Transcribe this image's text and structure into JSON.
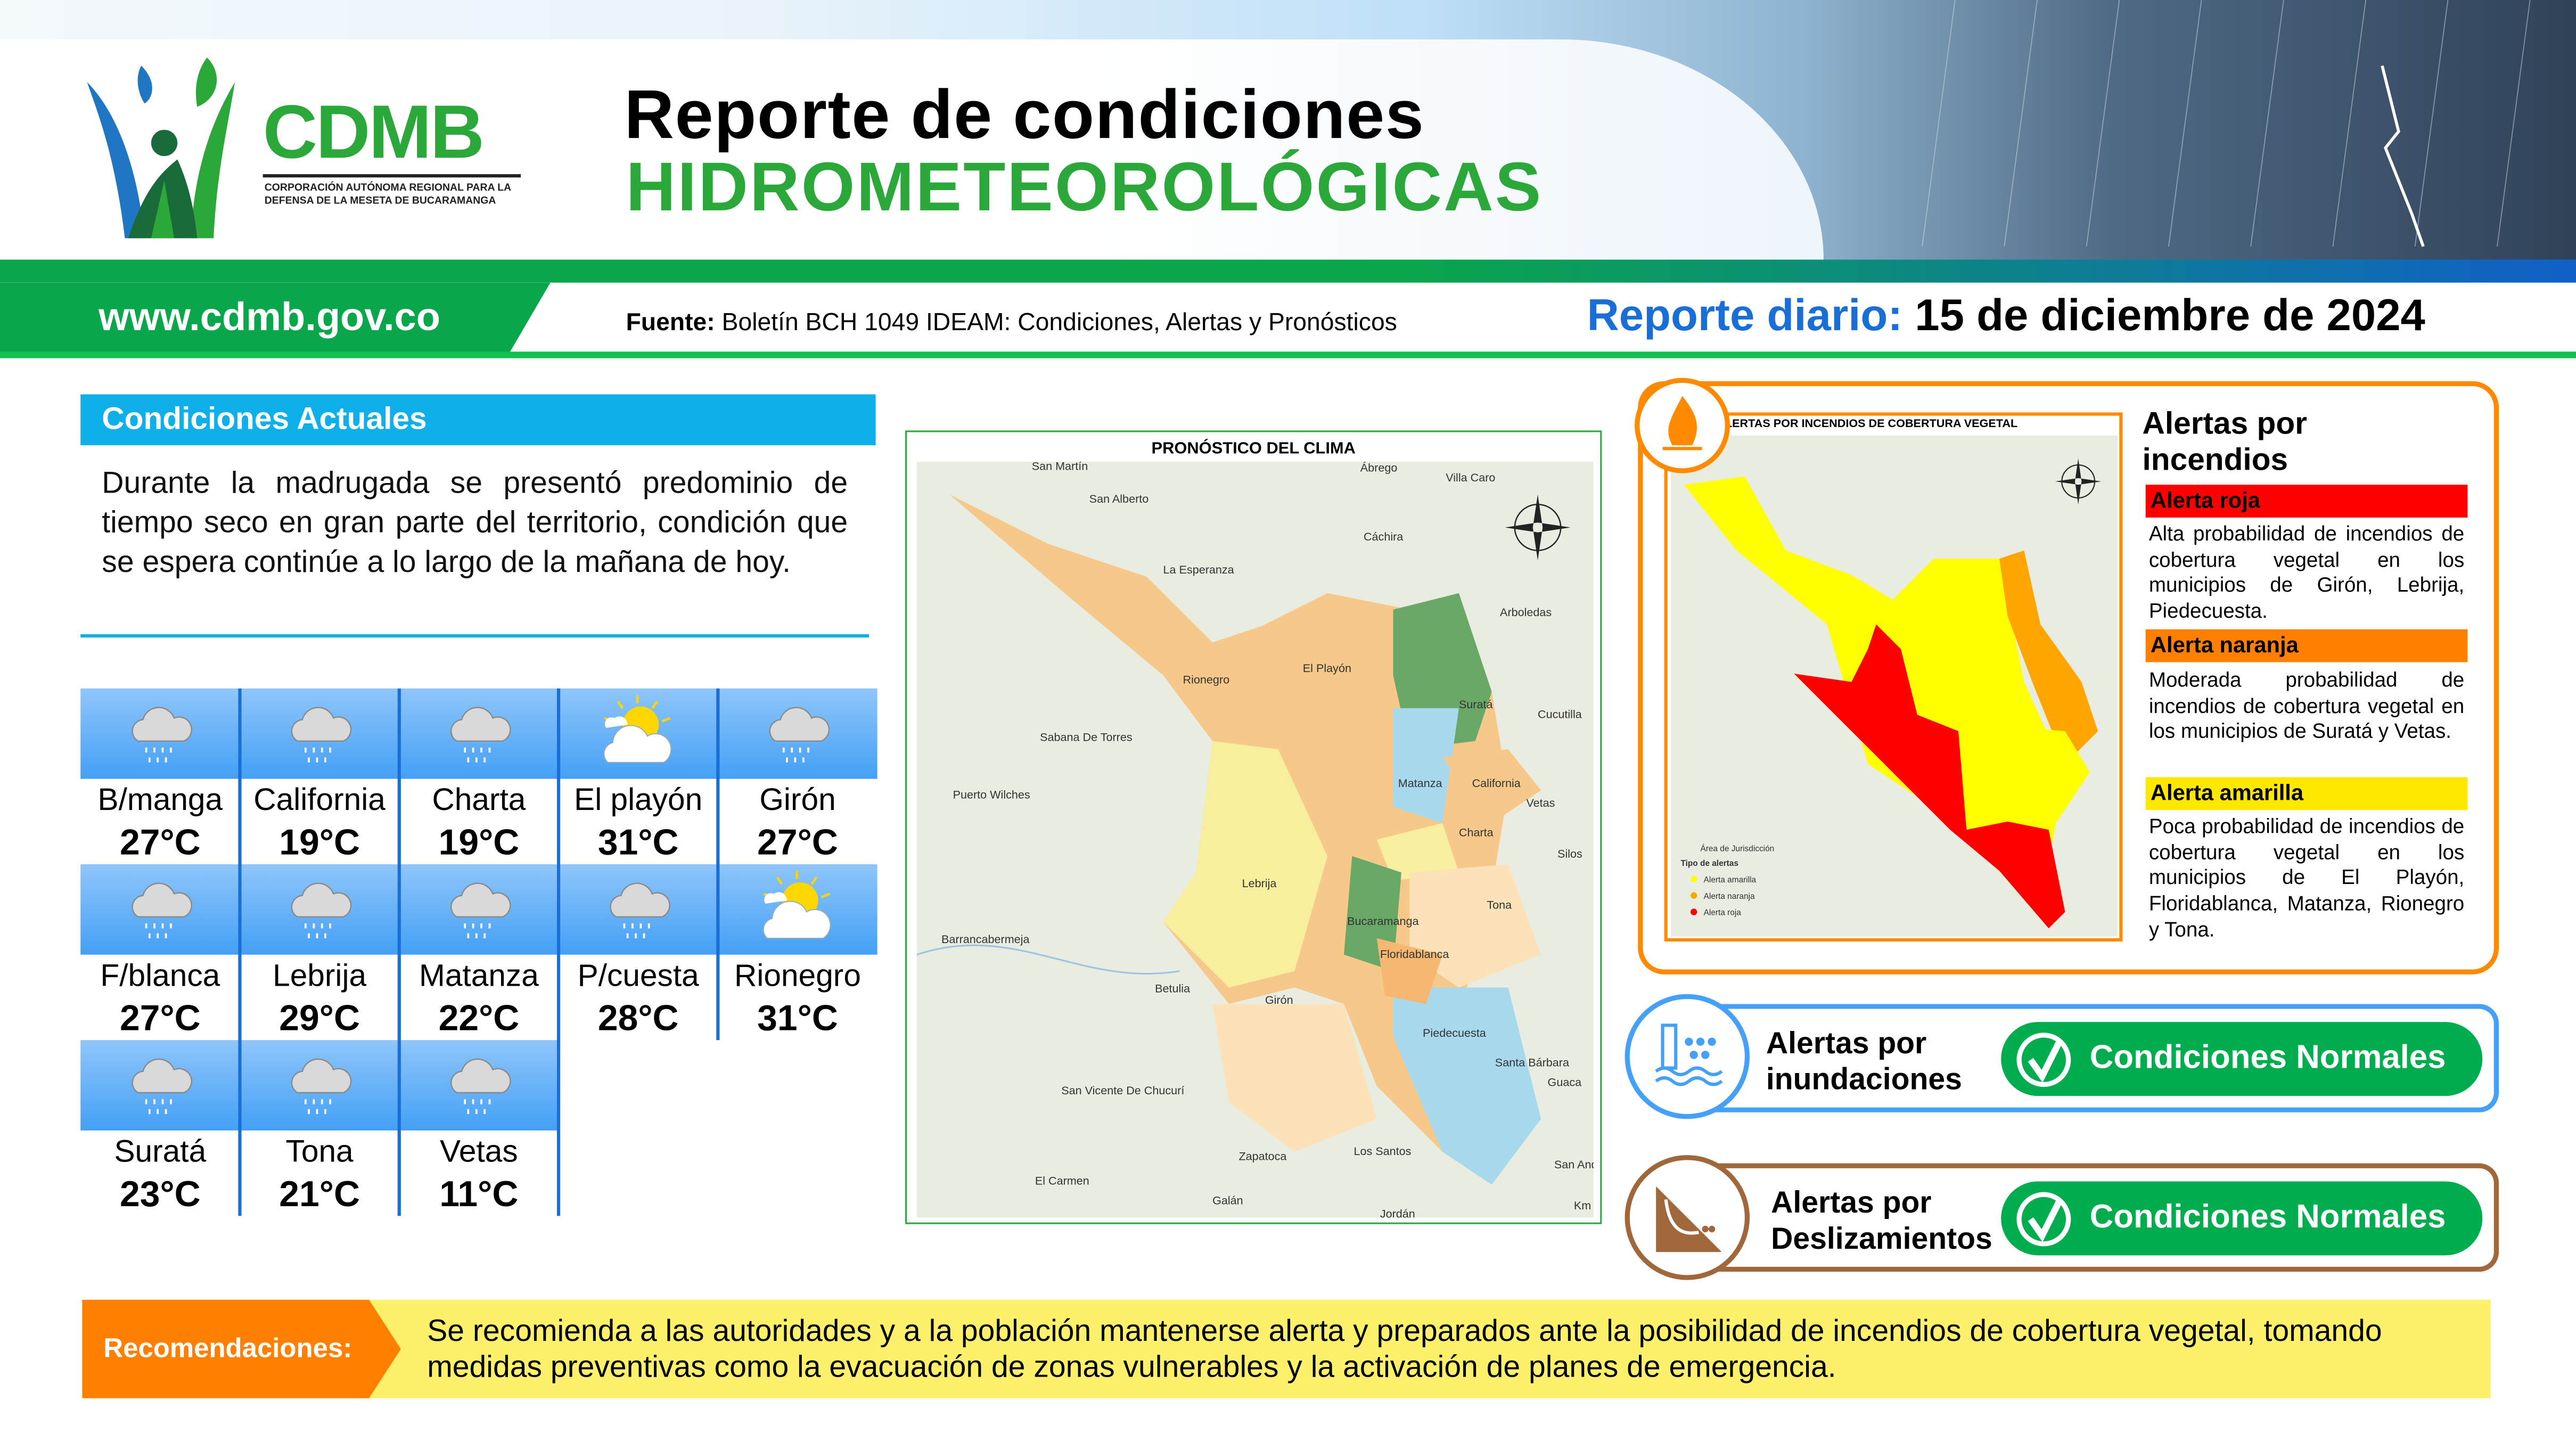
{
  "header": {
    "logo": {
      "name": "CDMB",
      "subtitle_line1": "CORPORACIÓN AUTÓNOMA REGIONAL PARA LA",
      "subtitle_line2": "DEFENSA DE LA MESETA DE BUCARAMANGA"
    },
    "title_line1": "Reporte de condiciones",
    "title_line2": "HIDROMETEOROLÓGICAS",
    "url": "www.cdmb.gov.co",
    "source_label": "Fuente:",
    "source_text": "Boletín BCH 1049 IDEAM: Condiciones, Alertas y Pronósticos",
    "report_label": "Reporte diario:",
    "report_date": "15 de diciembre de 2024"
  },
  "conditions": {
    "title": "Condiciones Actuales",
    "text": "Durante la madrugada se presentó predominio de tiempo seco en gran parte del territorio, condición que se espera continúe a lo largo de la mañana de hoy."
  },
  "weather": [
    {
      "name": "B/manga",
      "temp": "27°C",
      "icon": "rain-cloud-icon"
    },
    {
      "name": "California",
      "temp": "19°C",
      "icon": "rain-cloud-icon"
    },
    {
      "name": "Charta",
      "temp": "19°C",
      "icon": "rain-cloud-icon"
    },
    {
      "name": "El playón",
      "temp": "31°C",
      "icon": "partly-sunny-icon"
    },
    {
      "name": "Girón",
      "temp": "27°C",
      "icon": "rain-cloud-icon"
    },
    {
      "name": "F/blanca",
      "temp": "27°C",
      "icon": "rain-cloud-icon"
    },
    {
      "name": "Lebrija",
      "temp": "29°C",
      "icon": "rain-cloud-icon"
    },
    {
      "name": "Matanza",
      "temp": "22°C",
      "icon": "rain-cloud-icon"
    },
    {
      "name": "P/cuesta",
      "temp": "28°C",
      "icon": "rain-cloud-icon"
    },
    {
      "name": "Rionegro",
      "temp": "31°C",
      "icon": "partly-sunny-icon"
    },
    {
      "name": "Suratá",
      "temp": "23°C",
      "icon": "rain-cloud-icon"
    },
    {
      "name": "Tona",
      "temp": "21°C",
      "icon": "rain-cloud-icon"
    },
    {
      "name": "Vetas",
      "temp": "11°C",
      "icon": "rain-cloud-icon"
    }
  ],
  "forecast_map": {
    "title": "PRONÓSTICO DEL CLIMA",
    "labels": [
      "San Martín",
      "San Alberto",
      "Ábrego",
      "Villa Caro",
      "Cáchira",
      "La Esperanza",
      "Rionegro",
      "El Playón",
      "Arboledas",
      "Suratá",
      "Cucutilla",
      "Sabana De Torres",
      "Puerto Wilches",
      "Matanza",
      "California",
      "Vetas",
      "Charta",
      "Silos",
      "Lebrija",
      "Bucaramanga",
      "Tona",
      "Floridablanca",
      "Barrancabermeja",
      "Betulia",
      "Girón",
      "Piedecuesta",
      "Santa Bárbara",
      "Guaca",
      "San Vicente De Chucurí",
      "Zapatoca",
      "Los Santos",
      "El Carmen",
      "Galán",
      "Jordán",
      "San Andrés"
    ],
    "scale_unit": "Km"
  },
  "fire_alerts": {
    "map_title": "ALERTAS POR INCENDIOS DE COBERTURA VEGETAL",
    "legend_title": "Tipo de alertas",
    "legend_area": "Área de Jurisdicción",
    "legend_items": [
      "Alerta amarilla",
      "Alerta naranja",
      "Alerta roja"
    ],
    "title": "Alertas por incendios",
    "levels": [
      {
        "label": "Alerta roja",
        "color": "#ff0000",
        "text": "Alta probabilidad de incendios de cobertura vegetal en los municipios de Girón, Lebrija, Piedecuesta."
      },
      {
        "label": "Alerta naranja",
        "color": "#ff8000",
        "text": "Moderada probabilidad de incendios de cobertura vegetal en los municipios de Suratá y Vetas."
      },
      {
        "label": "Alerta amarilla",
        "color": "#ffe800",
        "text": "Poca probabilidad de incendios de cobertura vegetal en los municipios de El Playón, Floridablanca, Matanza, Rionegro y Tona."
      }
    ]
  },
  "flood_alert": {
    "label_line1": "Alertas por",
    "label_line2": "inundaciones",
    "status": "Condiciones Normales",
    "color": "#45a0f7"
  },
  "landslide_alert": {
    "label_line1": "Alertas por",
    "label_line2": "Deslizamientos",
    "status": "Condiciones Normales",
    "color": "#a0673a"
  },
  "recommendations": {
    "label": "Recomendaciones:",
    "text": "Se recomienda a las autoridades y a la población mantenerse alerta y preparados ante la posibilidad de incendios de cobertura vegetal, tomando medidas preventivas como la evacuación de zonas vulnerables y la activación de planes de emergencia."
  },
  "colors": {
    "green": "#2ca83a",
    "blue": "#1a6fd6",
    "cyan": "#0fb0ea",
    "orange": "#ff8a00",
    "yellow": "#fdf06b"
  }
}
